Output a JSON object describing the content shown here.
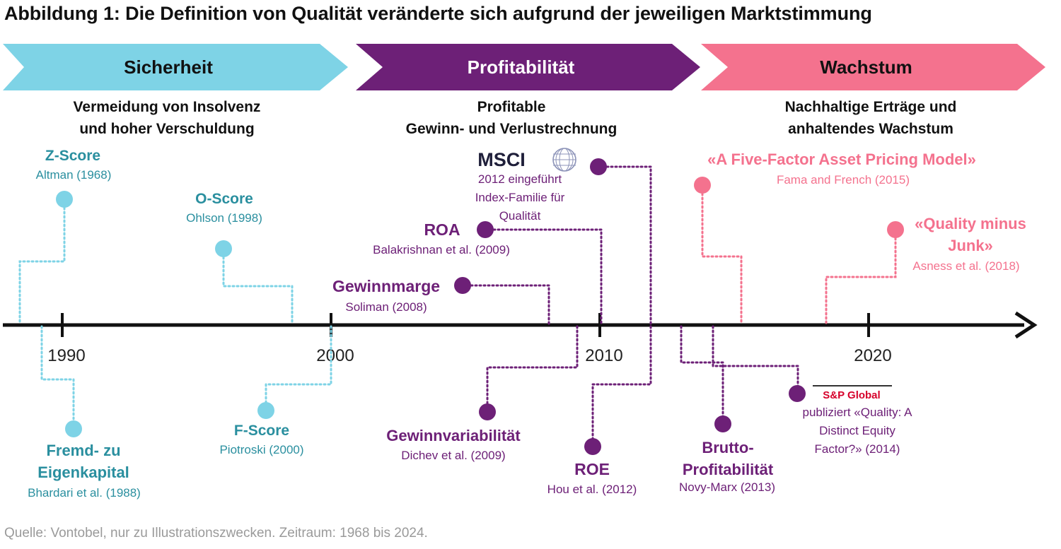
{
  "title": "Abbildung 1: Die Definition von Qualität veränderte sich aufgrund der jeweiligen Marktstimmung",
  "source": "Quelle: Vontobel, nur zu Illustrationszwecken. Zeitraum: 1968 bis 2024.",
  "colors": {
    "cyan": "#7ed3e6",
    "cyan_text": "#2a8f9f",
    "purple": "#6d2077",
    "purple_text": "#6d2077",
    "pink": "#f4728e",
    "pink_text": "#f4728e",
    "axis": "#111111",
    "spglobal_red": "#d6002a"
  },
  "phases": [
    {
      "label": "Sicherheit",
      "desc": [
        "Vermeidung von Insolvenz",
        "und hoher Verschuldung"
      ],
      "color": "cyan"
    },
    {
      "label": "Profitabilität",
      "desc": [
        "Profitable",
        "Gewinn- und Verlustrechnung"
      ],
      "color": "purple"
    },
    {
      "label": "Wachstum",
      "desc": [
        "Nachhaltige Erträge und",
        "anhaltendes Wachstum"
      ],
      "color": "pink"
    }
  ],
  "axis": {
    "ticks": [
      1990,
      2000,
      2010,
      2020
    ]
  },
  "events": [
    {
      "id": "z-score",
      "color": "cyan",
      "year": 1968,
      "title": [
        "Z-Score"
      ],
      "subtitle": [
        "Altman  (1968)"
      ]
    },
    {
      "id": "o-score",
      "color": "cyan",
      "year": 1998,
      "title": [
        "O-Score"
      ],
      "subtitle": [
        "Ohlson  (1998)"
      ]
    },
    {
      "id": "fremd-zu-eigenkapital",
      "color": "cyan",
      "year": 1988,
      "title": [
        "Fremd- zu",
        "Eigenkapital"
      ],
      "subtitle": [
        "Bhardari et al. (1988)"
      ]
    },
    {
      "id": "f-score",
      "color": "cyan",
      "year": 2000,
      "title": [
        "F-Score"
      ],
      "subtitle": [
        "Piotroski (2000)"
      ]
    },
    {
      "id": "msci",
      "color": "purple",
      "year": 2012,
      "title": [
        "MSCI"
      ],
      "subtitle": [
        "2012 eingeführt",
        "Index-Familie  für",
        "Qualität"
      ]
    },
    {
      "id": "roa",
      "color": "purple",
      "year": 2009,
      "title": [
        "ROA"
      ],
      "subtitle": [
        "Balakrishnan  et al. (2009)"
      ]
    },
    {
      "id": "gewinnmarge",
      "color": "purple",
      "year": 2008,
      "title": [
        "Gewinnmarge"
      ],
      "subtitle": [
        "Soliman (2008)"
      ]
    },
    {
      "id": "gewinnvariabilitaet",
      "color": "purple",
      "year": 2009,
      "title": [
        "Gewinnvariabilität"
      ],
      "subtitle": [
        "Dichev et al. (2009)"
      ]
    },
    {
      "id": "roe",
      "color": "purple",
      "year": 2012,
      "title": [
        "ROE"
      ],
      "subtitle": [
        "Hou et al. (2012)"
      ]
    },
    {
      "id": "brutto-profitabilitaet",
      "color": "purple",
      "year": 2013,
      "title": [
        "Brutto-",
        "Profitabilität"
      ],
      "subtitle": [
        "Novy-Marx  (2013)"
      ]
    },
    {
      "id": "sp-global",
      "color": "purple",
      "year": 2014,
      "title": [
        "S&P Global"
      ],
      "subtitle": [
        "publiziert «Quality: A",
        "Distinct Equity",
        "Factor?» (2014)"
      ]
    },
    {
      "id": "five-factor",
      "color": "pink",
      "year": 2015,
      "title": [
        "«A Five-Factor Asset Pricing Model»"
      ],
      "subtitle": [
        "Fama and French (2015)"
      ]
    },
    {
      "id": "quality-minus-junk",
      "color": "pink",
      "year": 2018,
      "title": [
        "«Quality minus",
        "Junk»"
      ],
      "subtitle": [
        "Asness et al. (2018)"
      ]
    }
  ]
}
